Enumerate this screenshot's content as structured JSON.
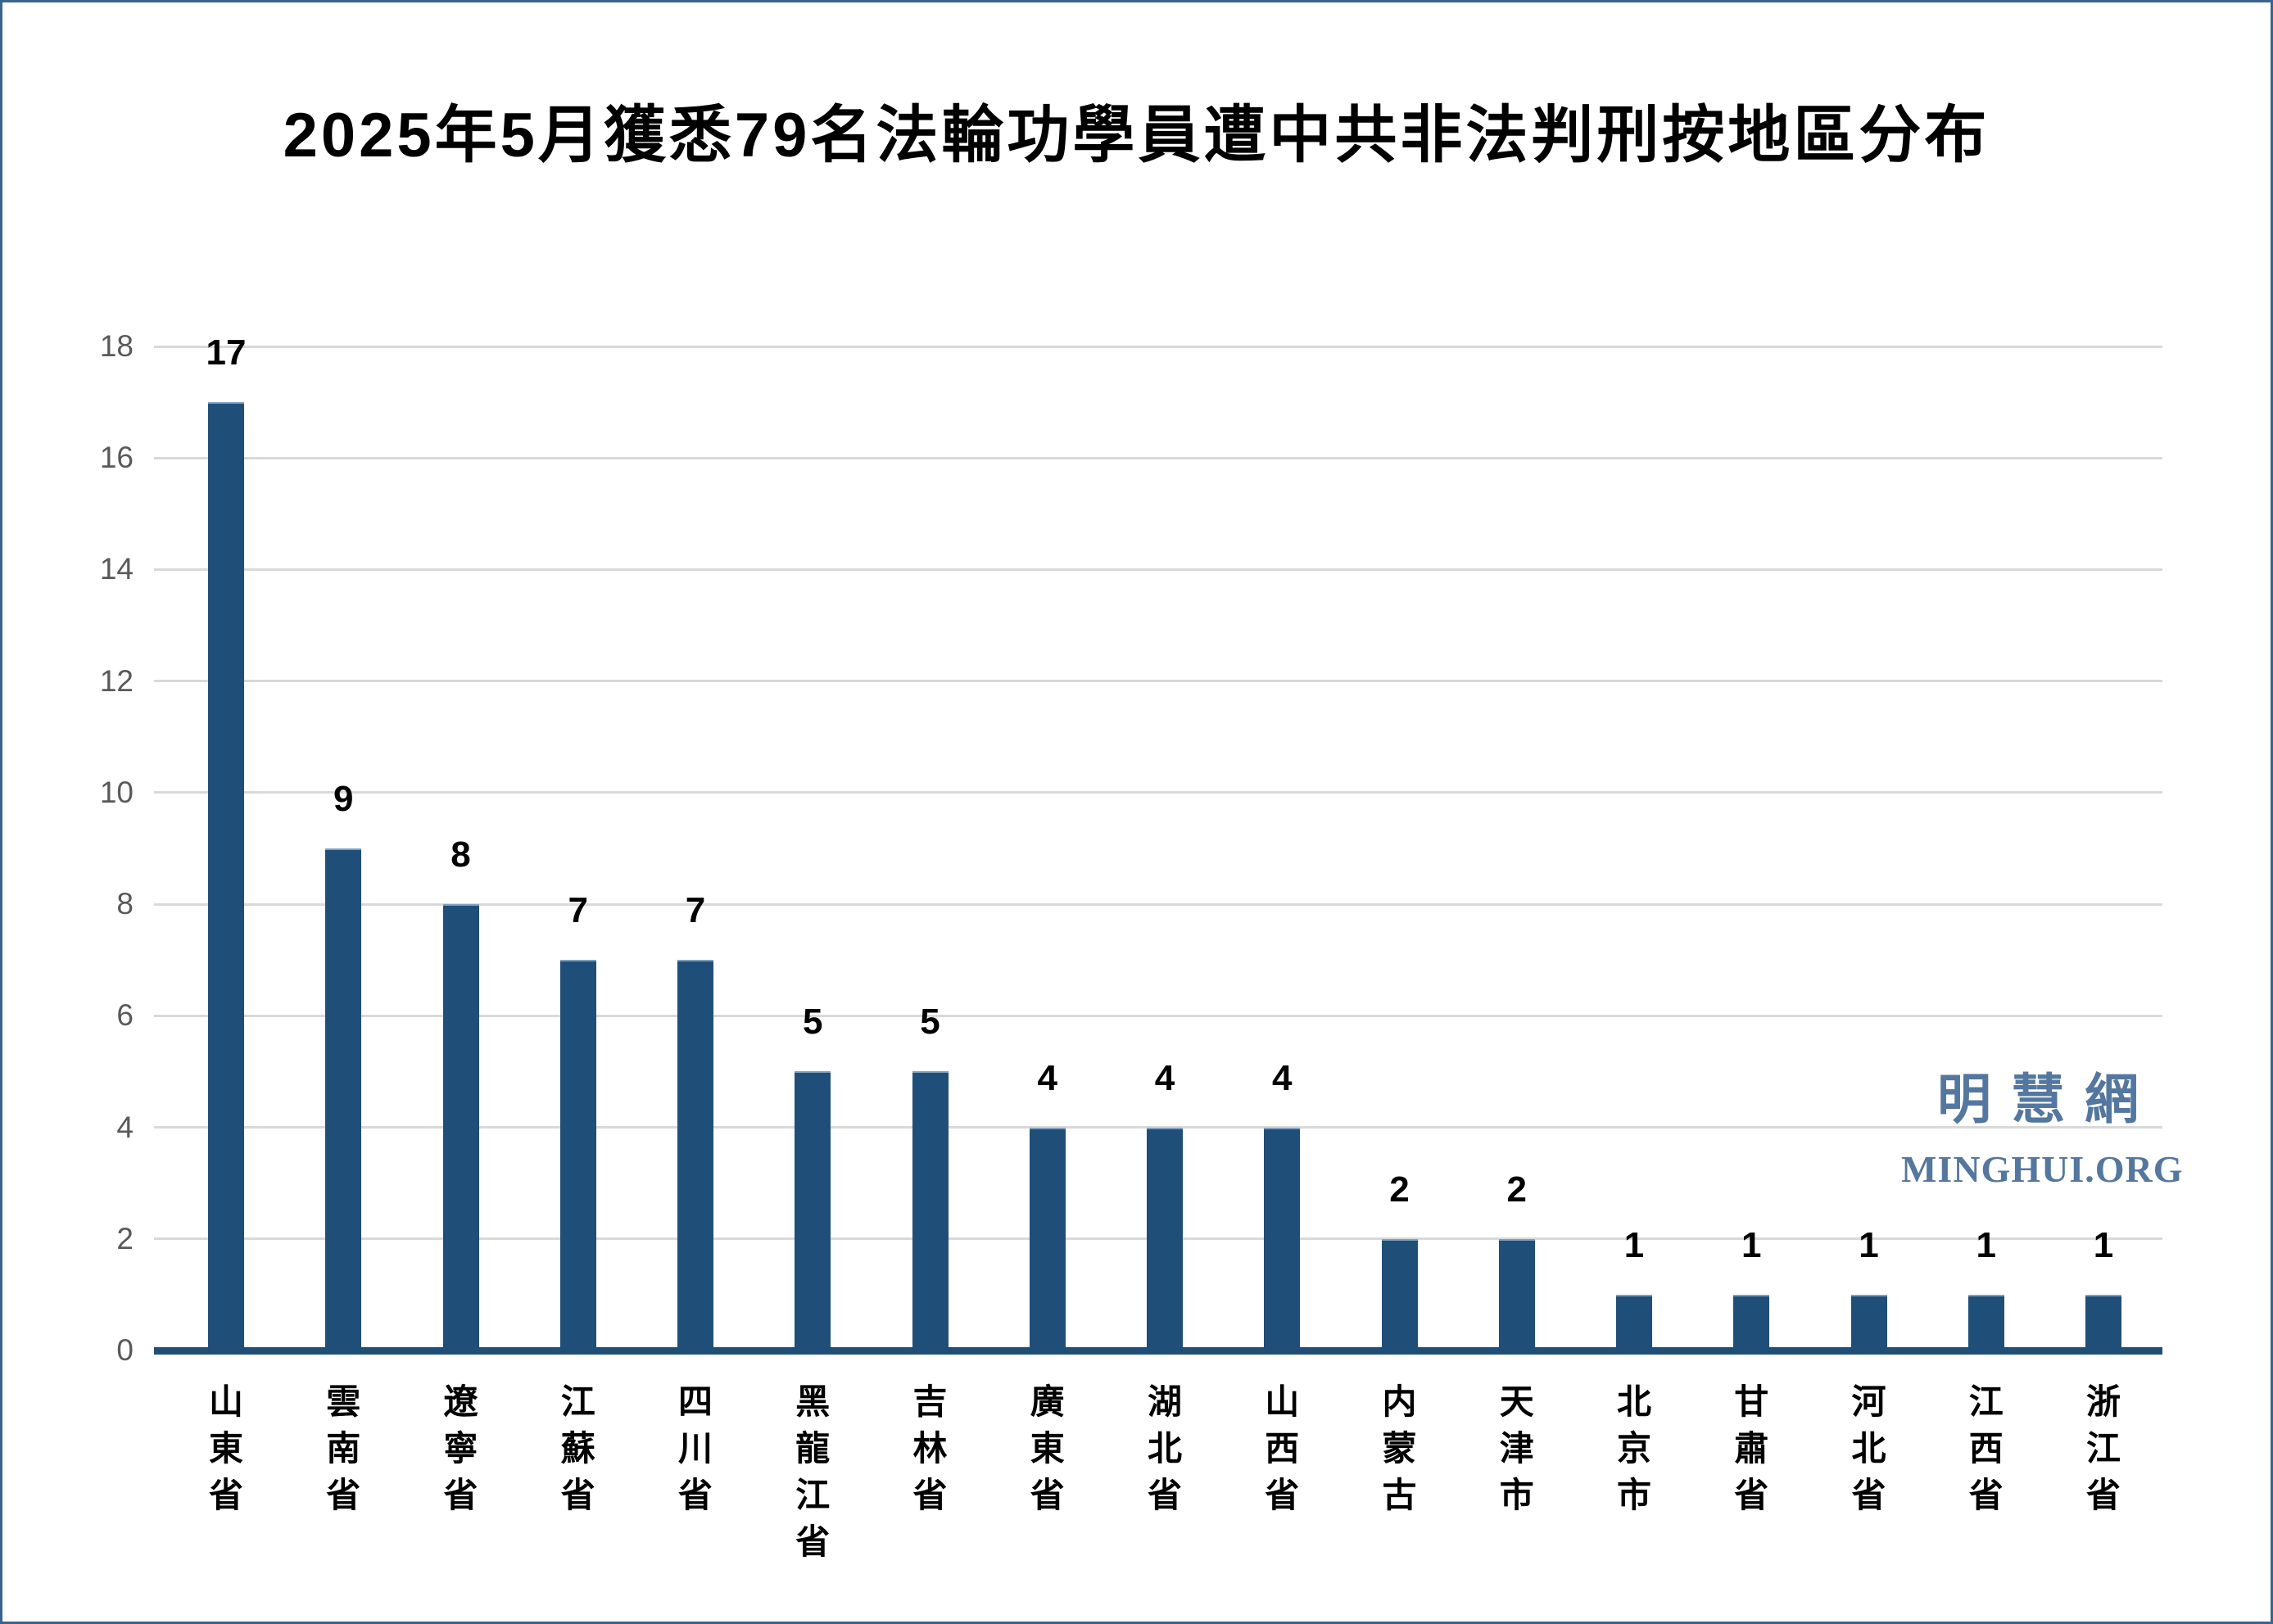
{
  "page": {
    "border_color": "#3A6490",
    "background_color": "#FFFFFF"
  },
  "chart_data": {
    "type": "bar",
    "title": "2025年5月獲悉79名法輪功學員遭中共非法判刑按地區分布",
    "categories": [
      "山東省",
      "雲南省",
      "遼寧省",
      "江蘇省",
      "四川省",
      "黑龍江省",
      "吉林省",
      "廣東省",
      "湖北省",
      "山西省",
      "内蒙古",
      "天津市",
      "北京市",
      "甘肅省",
      "河北省",
      "江西省",
      "浙江省"
    ],
    "values": [
      17,
      9,
      8,
      7,
      7,
      5,
      5,
      4,
      4,
      4,
      2,
      2,
      1,
      1,
      1,
      1,
      1
    ],
    "data_labels": [
      "17",
      "9",
      "8",
      "7",
      "7",
      "5",
      "5",
      "4",
      "4",
      "4",
      "2",
      "2",
      "1",
      "1",
      "1",
      "1",
      "1"
    ],
    "xlabel": "",
    "ylabel": "",
    "ylim": [
      0,
      18
    ],
    "yticks": [
      0,
      2,
      4,
      6,
      8,
      10,
      12,
      14,
      16,
      18
    ],
    "grid": true,
    "legend": false,
    "bar_color": "#1F4E79",
    "axis_color": "#1F4E79",
    "grid_color": "#D9D9D9",
    "tick_label_color": "#595959",
    "data_label_color": "#000000"
  },
  "watermark": {
    "chinese": "明慧網",
    "latin": "MINGHUI.ORG",
    "color": "#54779F"
  }
}
